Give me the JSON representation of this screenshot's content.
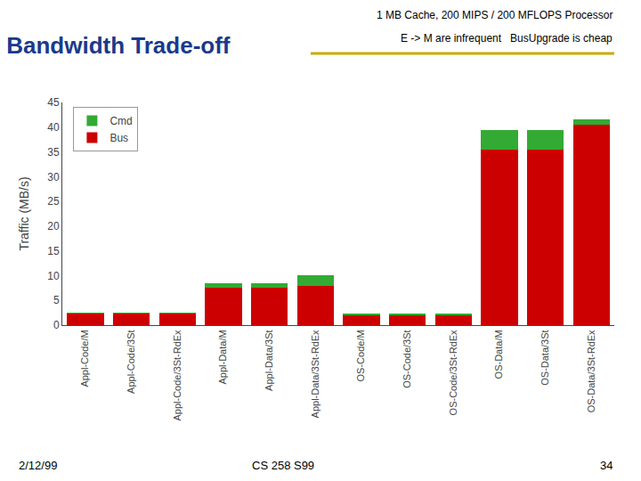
{
  "chart_data": {
    "type": "bar",
    "title": "Bandwidth Trade-off",
    "subtitle": "E -> M are infrequent   BusUpgrade is cheap",
    "annotations": [
      "1 MB Cache, 200 MIPS / 200 MFLOPS Processor",
      "2/12/99",
      "CS 258 S99",
      "34"
    ],
    "ylabel": "Traffic (MB/s)",
    "categories": [
      "Appl-Code/M",
      "Appl-Code/3St",
      "Appl-Code/3St-RdEx",
      "Appl-Data/M",
      "Appl-Data/3St",
      "Appl-Data/3St-RdEx",
      "OS-Code/M",
      "OS-Code/3St",
      "OS-Code/3St-RdEx",
      "OS-Data/M",
      "OS-Data/3St",
      "OS-Data/3St-RdEx"
    ],
    "series": [
      {
        "name": "Bus",
        "color": "#cc0000",
        "values": [
          2.4,
          2.4,
          2.4,
          7.5,
          7.5,
          8.0,
          2.0,
          2.0,
          2.0,
          35.5,
          35.5,
          40.5
        ]
      },
      {
        "name": "Cmd",
        "color": "#33aa33",
        "values": [
          0.1,
          0.05,
          0.05,
          0.9,
          0.9,
          2.0,
          0.3,
          0.3,
          0.2,
          4.0,
          4.0,
          1.0
        ]
      }
    ],
    "stacked": true,
    "ylim": [
      0,
      45
    ],
    "yticks": [
      0,
      5,
      10,
      15,
      20,
      25,
      30,
      35,
      40,
      45
    ],
    "grid": false,
    "legend": "upper left"
  }
}
